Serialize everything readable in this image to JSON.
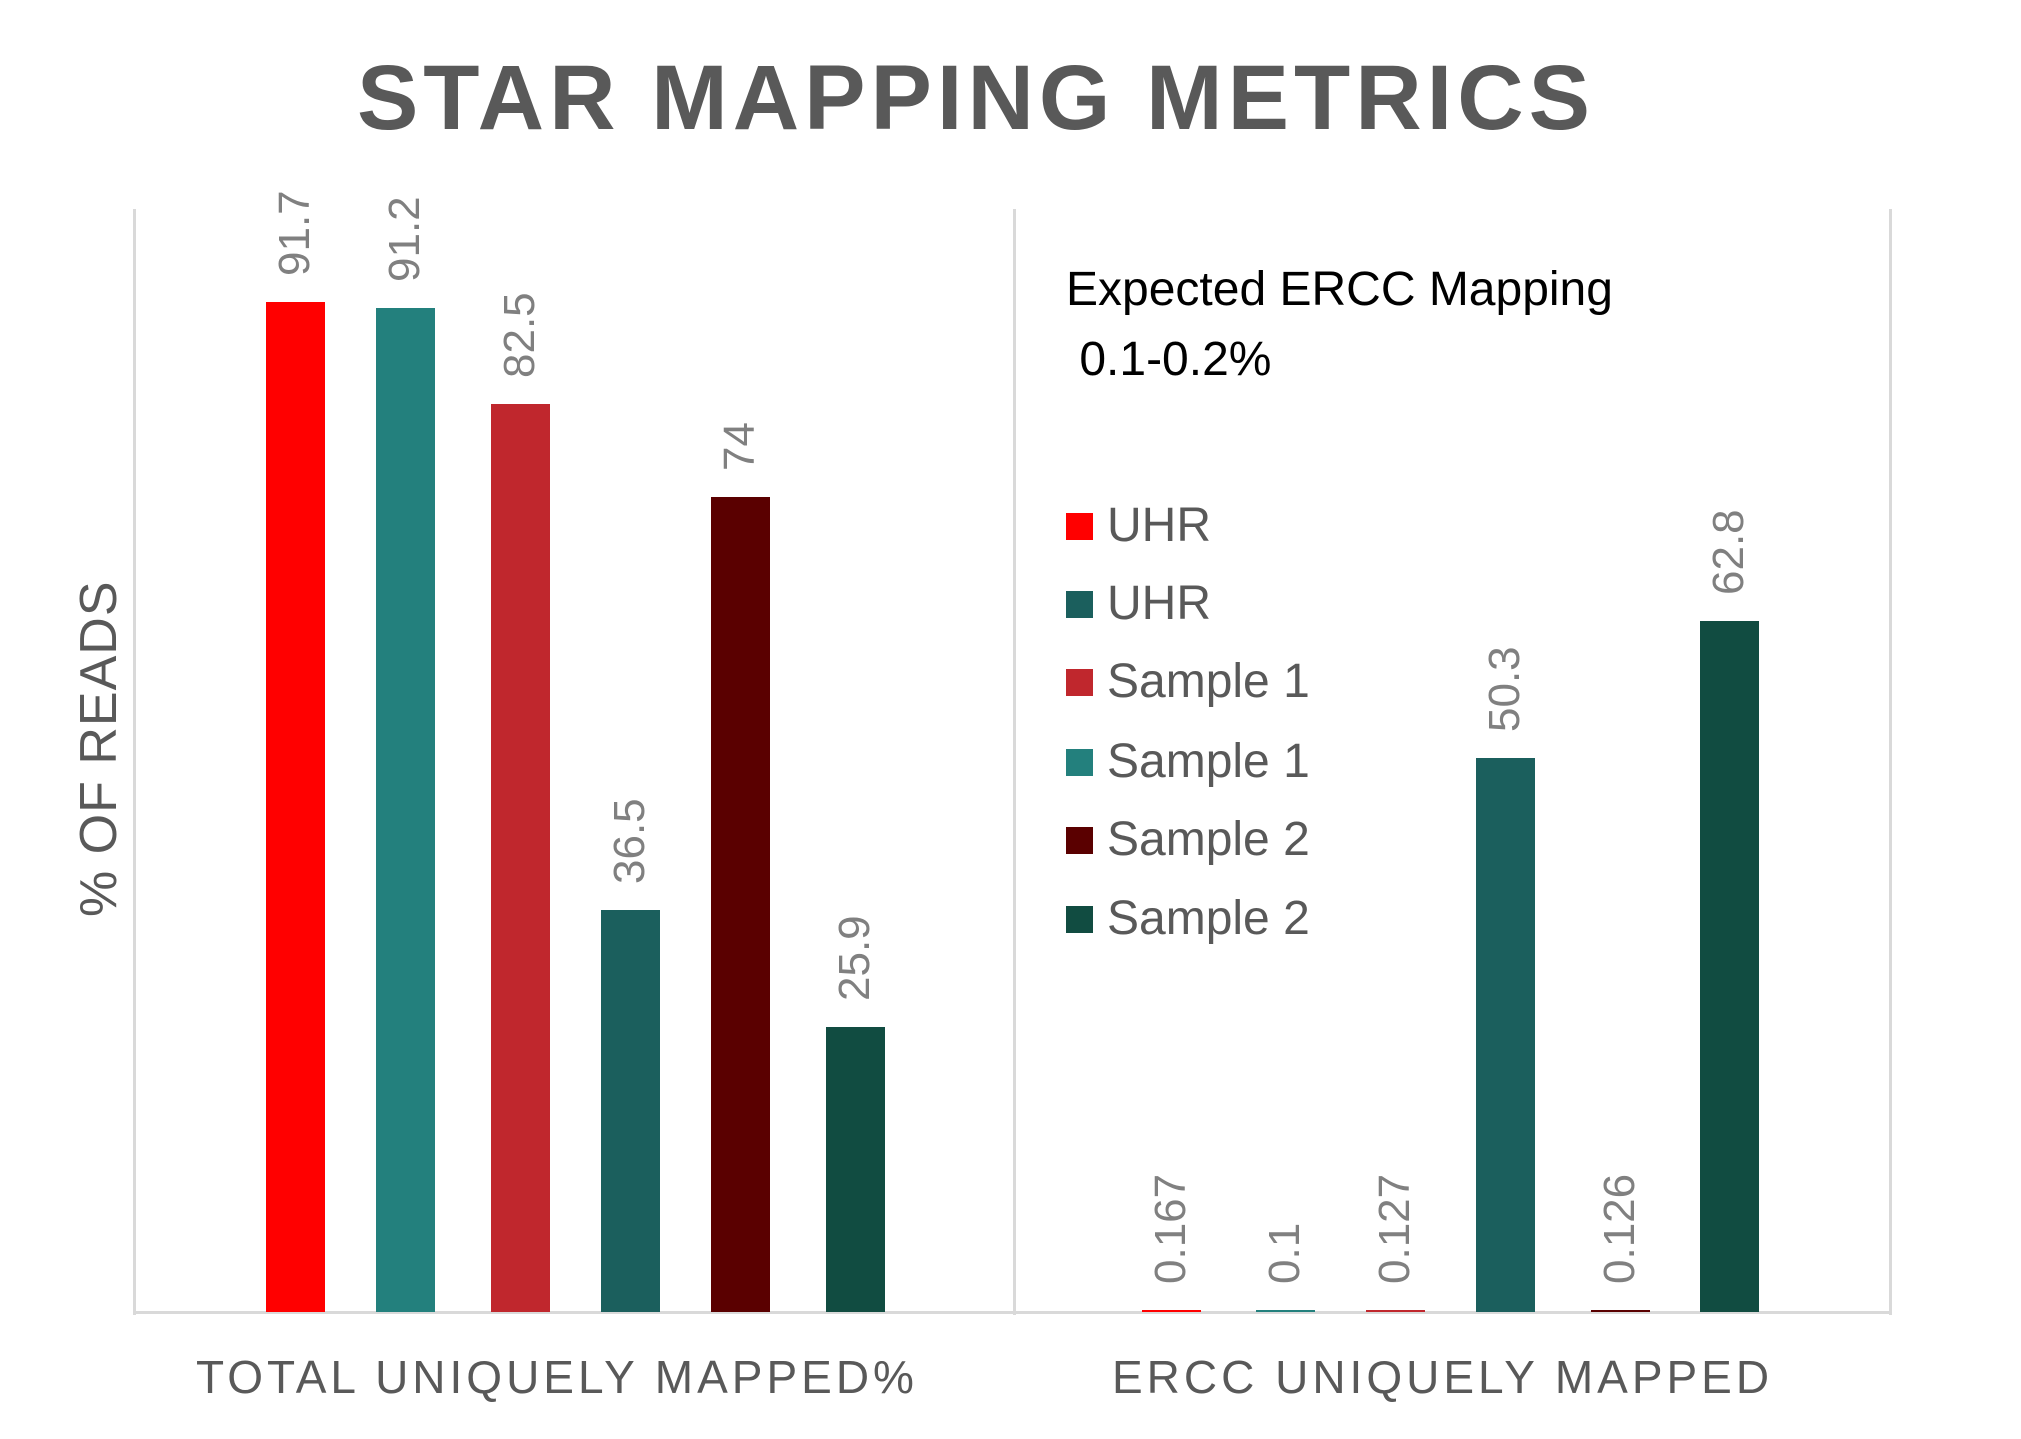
{
  "chart_data": {
    "type": "bar",
    "title": "STAR MAPPING METRICS",
    "ylabel": "% OF READS",
    "xlabel": "",
    "ylim": [
      0,
      100
    ],
    "grid": false,
    "categories": [
      "TOTAL UNIQUELY MAPPED%",
      "ERCC UNIQUELY MAPPED"
    ],
    "series": [
      {
        "name": "UHR",
        "color": "#ff0000",
        "values": [
          91.7,
          0.167
        ],
        "labels": [
          "91.7",
          "0.167"
        ]
      },
      {
        "name": "UHR",
        "color": "#23807d",
        "values": [
          91.2,
          0.1
        ],
        "labels": [
          "91.2",
          "0.1"
        ]
      },
      {
        "name": "Sample 1",
        "color": "#c0272d",
        "values": [
          82.5,
          0.127
        ],
        "labels": [
          "82.5",
          "0.127"
        ]
      },
      {
        "name": "Sample 1",
        "color": "#1b5f5d",
        "values": [
          36.5,
          50.3
        ],
        "labels": [
          "36.5",
          "50.3"
        ]
      },
      {
        "name": "Sample 2",
        "color": "#5a0000",
        "values": [
          74,
          0.126
        ],
        "labels": [
          "74",
          "0.126"
        ]
      },
      {
        "name": "Sample 2",
        "color": "#114c41",
        "values": [
          25.9,
          62.8
        ],
        "labels": [
          "25.9",
          "62.8"
        ]
      }
    ],
    "legend": {
      "position": "right-inside",
      "entries": [
        {
          "label": "UHR",
          "color": "#ff0000"
        },
        {
          "label": "UHR",
          "color": "#1b5f5d"
        },
        {
          "label": "Sample 1",
          "color": "#c0272d"
        },
        {
          "label": "Sample 1",
          "color": "#23807d"
        },
        {
          "label": "Sample 2",
          "color": "#5a0000"
        },
        {
          "label": "Sample 2",
          "color": "#114c41"
        }
      ]
    },
    "annotations": [
      "Expected ERCC Mapping",
      " 0.1-0.2%"
    ]
  },
  "labels": {
    "annotation_line1": "Expected ERCC Mapping",
    "annotation_line2": " 0.1-0.2%"
  }
}
